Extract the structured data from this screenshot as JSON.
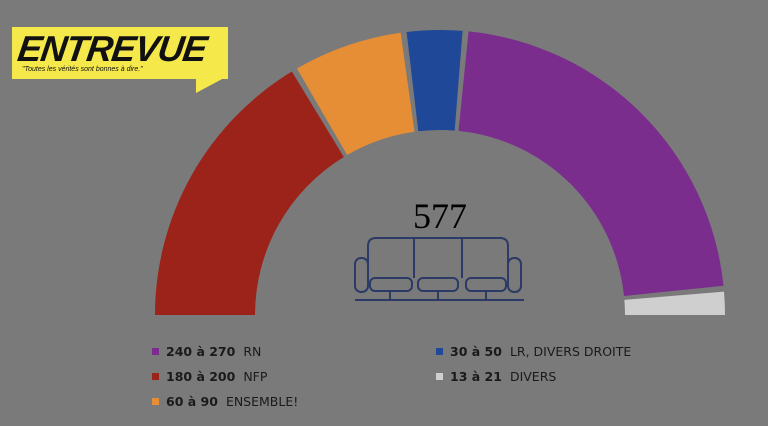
{
  "logo": {
    "word": "ENTREVUE",
    "tagline": "\"Toutes les vérités sont bonnes à dire.\""
  },
  "chart_data": {
    "type": "pie",
    "subtype": "semicircle",
    "total_label": "577",
    "series": [
      {
        "name": "NFP",
        "range_label": "180 à 200",
        "min": 180,
        "max": 200,
        "color": "#9b2319"
      },
      {
        "name": "ENSEMBLE!",
        "range_label": "60 à 90",
        "min": 60,
        "max": 90,
        "color": "#e58e35"
      },
      {
        "name": "LR, DIVERS DROITE",
        "range_label": "30 à 50",
        "min": 30,
        "max": 50,
        "color": "#1f4898"
      },
      {
        "name": "RN",
        "range_label": "240 à 270",
        "min": 240,
        "max": 270,
        "color": "#7b2d8e"
      },
      {
        "name": "DIVERS",
        "range_label": "13 à 21",
        "min": 13,
        "max": 21,
        "color": "#cfcfcf"
      }
    ],
    "legend_order": [
      3,
      0,
      1,
      2,
      4
    ],
    "legend_placement": "bottom"
  },
  "icon": "sofa-icon",
  "background": "#7a7a7a"
}
